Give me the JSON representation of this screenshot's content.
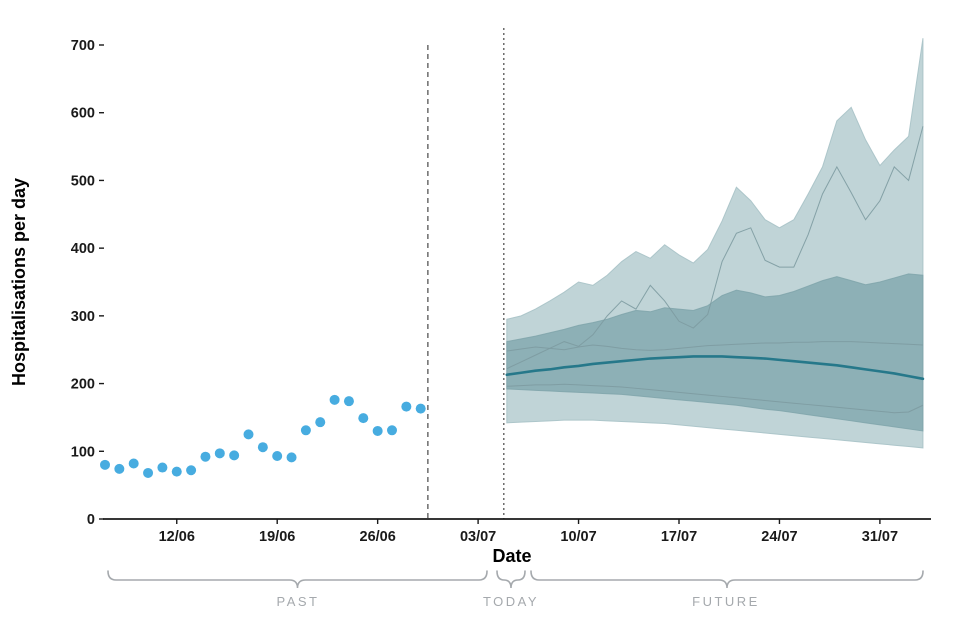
{
  "chart_data": {
    "type": "line",
    "subtype": "forecast-fan-with-observed-scatter",
    "title": "",
    "xlabel": "Date",
    "ylabel": "Hospitalisations per day",
    "ylim": [
      0,
      730
    ],
    "yticks": [
      0,
      100,
      200,
      300,
      400,
      500,
      600,
      700
    ],
    "xticks": [
      {
        "day": 5,
        "label": "12/06"
      },
      {
        "day": 12,
        "label": "19/06"
      },
      {
        "day": 19,
        "label": "26/06"
      },
      {
        "day": 26,
        "label": "03/07"
      },
      {
        "day": 33,
        "label": "10/07"
      },
      {
        "day": 40,
        "label": "17/07"
      },
      {
        "day": 47,
        "label": "24/07"
      },
      {
        "day": 54,
        "label": "31/07"
      }
    ],
    "colors": {
      "observed": "#47ace0",
      "median": "#26788a",
      "band_outer": "#c0d4d7",
      "band_inner": "#8db0b6",
      "band_outer_edge": "#a7c2c6",
      "band_inner_edge": "#7da2a9",
      "trajectory": "#7d9ba1",
      "divider": "#555555",
      "axis": "#1a1a1a",
      "annotation": "#a5a9ad"
    },
    "observed": {
      "name": "Observed hospitalisations per day",
      "start_day": 0,
      "values": [
        80,
        74,
        82,
        68,
        76,
        70,
        72,
        92,
        97,
        94,
        125,
        106,
        93,
        91,
        131,
        143,
        176,
        174,
        149,
        130,
        131,
        166,
        163
      ]
    },
    "divider_dashed_day": 22.5,
    "today_day": 28,
    "forecast": {
      "start_day": 28,
      "median": [
        213,
        216,
        219,
        221,
        224,
        226,
        229,
        231,
        233,
        235,
        237,
        238,
        239,
        240,
        240,
        240,
        239,
        238,
        237,
        235,
        233,
        231,
        229,
        227,
        224,
        221,
        218,
        215,
        211,
        207
      ],
      "inner_high": [
        262,
        266,
        270,
        275,
        280,
        286,
        290,
        295,
        302,
        308,
        306,
        312,
        310,
        308,
        315,
        330,
        338,
        334,
        328,
        330,
        336,
        344,
        352,
        358,
        352,
        346,
        350,
        356,
        362,
        360
      ],
      "inner_low": [
        192,
        191,
        190,
        189,
        188,
        187,
        186,
        185,
        184,
        182,
        180,
        178,
        176,
        174,
        172,
        170,
        168,
        165,
        162,
        160,
        157,
        154,
        151,
        148,
        145,
        142,
        139,
        136,
        133,
        130
      ],
      "outer_high": [
        295,
        300,
        310,
        322,
        335,
        350,
        345,
        360,
        380,
        395,
        385,
        405,
        390,
        378,
        398,
        440,
        490,
        470,
        442,
        430,
        442,
        480,
        520,
        588,
        608,
        560,
        522,
        545,
        565,
        710
      ],
      "outer_low": [
        142,
        143,
        144,
        145,
        146,
        146,
        146,
        145,
        144,
        143,
        142,
        141,
        139,
        137,
        135,
        133,
        131,
        129,
        127,
        125,
        123,
        121,
        119,
        117,
        115,
        113,
        111,
        109,
        107,
        105
      ],
      "trajectories": [
        [
          222,
          232,
          242,
          252,
          262,
          255,
          272,
          300,
          322,
          310,
          345,
          322,
          292,
          282,
          302,
          380,
          422,
          430,
          382,
          372,
          372,
          420,
          480,
          520,
          482,
          442,
          470,
          520,
          500,
          580
        ],
        [
          248,
          251,
          254,
          252,
          250,
          254,
          257,
          255,
          252,
          250,
          249,
          250,
          252,
          254,
          256,
          257,
          258,
          259,
          260,
          260,
          261,
          261,
          262,
          262,
          262,
          261,
          260,
          259,
          258,
          257
        ],
        [
          196,
          197,
          198,
          198,
          199,
          198,
          197,
          196,
          195,
          193,
          191,
          189,
          187,
          185,
          183,
          181,
          179,
          177,
          175,
          173,
          171,
          169,
          167,
          165,
          163,
          161,
          159,
          157,
          158,
          168
        ]
      ]
    },
    "annotations": {
      "past": "PAST",
      "today": "TODAY",
      "future": "FUTURE"
    }
  }
}
